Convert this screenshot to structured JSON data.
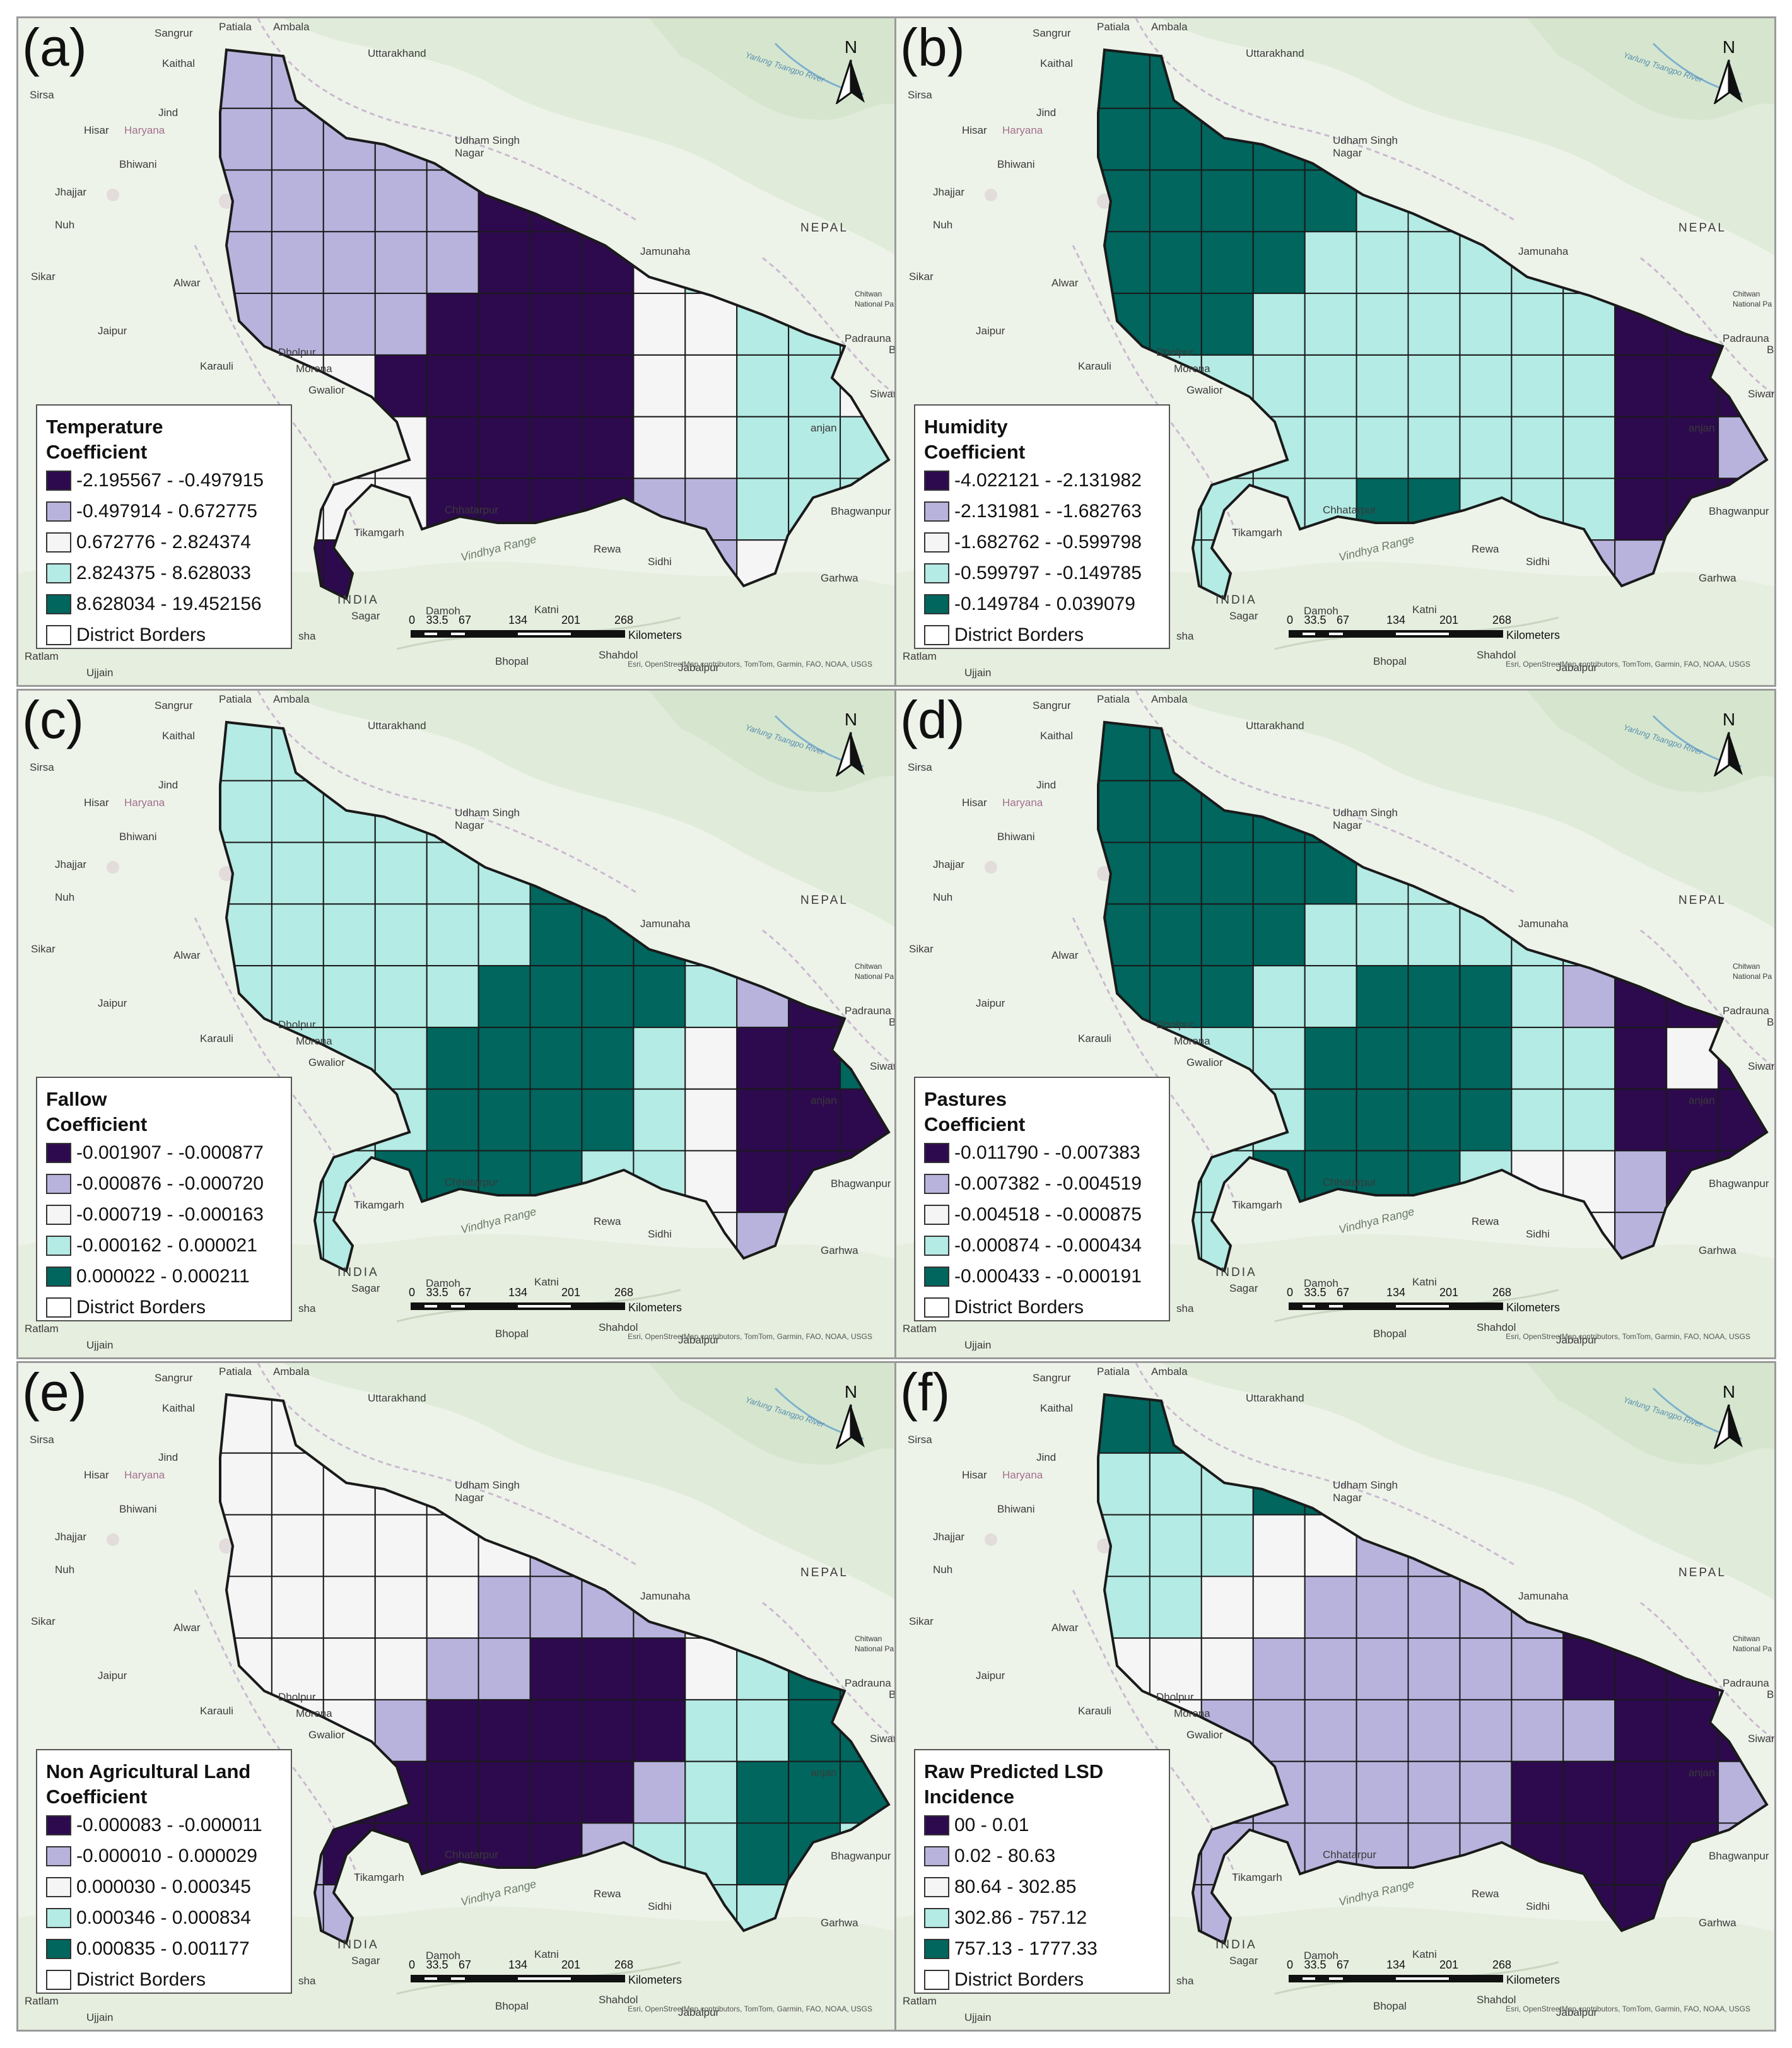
{
  "colors": {
    "c1": "#2d0a4e",
    "c2": "#b8b3dd",
    "c3": "#f5f5f5",
    "c4": "#b4ebe4",
    "c5": "#00665e",
    "border": "#1a1a1a",
    "basemap": "#eef3ea"
  },
  "places": {
    "sangrur": "Sangrur",
    "patiala": "Patiala",
    "ambala": "Ambala",
    "kaithal": "Kaithal",
    "sirsa": "Sirsa",
    "jind": "Jind",
    "hisar": "Hisar",
    "haryana": "Haryana",
    "bhiwani": "Bhiwani",
    "jhajjar": "Jhajjar",
    "nuh": "Nuh",
    "sikar": "Sikar",
    "alwar": "Alwar",
    "jaipur": "Jaipur",
    "karauli": "Karauli",
    "dholpur": "Dholpur",
    "morena": "Morena",
    "gwalior": "Gwalior",
    "uttarakhand": "Uttarakhand",
    "udham1": "Udham Singh",
    "udham2": "Nagar",
    "nepal": "NEPAL",
    "jamunaha": "Jamunaha",
    "chitwan1": "Chitwan",
    "chitwan2": "National Pa",
    "padrauna": "Padrauna",
    "bet": "Bet",
    "siwan": "Siwan",
    "anjan": "anjan",
    "bhagwanpur": "Bhagwanpur",
    "tikamgarh": "Tikamgarh",
    "chhatarpur": "Chhatarpur",
    "vindhya": "Vindhya Range",
    "rewa": "Rewa",
    "sidhi": "Sidhi",
    "garhwa": "Garhwa",
    "india": "INDIA",
    "sagar": "Sagar",
    "damoh": "Damoh",
    "katni": "Katni",
    "jabalpur": "Jabalpur",
    "bhopal": "Bhopal",
    "ujjain": "Ujjain",
    "ratlam": "Ratlam",
    "shahdol": "Shahdol",
    "river": "Yarlung Tsangpo River",
    "sha": "sha"
  },
  "scale": {
    "labels": [
      "0",
      "33.5",
      "67",
      "134",
      "201",
      "268"
    ],
    "unit": "Kilometers"
  },
  "attribution": "Esri, OpenStreetMap contributors, TomTom, Garmin, FAO, NOAA, USGS",
  "north": "N",
  "border_label": "District Borders",
  "panels": [
    {
      "label": "(a)",
      "title1": "Temperature",
      "title2": "Coefficient",
      "classes": [
        "-2.195567 - -0.497915",
        "-0.497914 - 0.672775",
        "0.672776 - 2.824374",
        "2.824375 - 8.628033",
        "8.628034 - 19.452156"
      ],
      "cell_classes": [
        [
          2,
          2,
          2,
          2,
          2,
          2,
          0,
          0,
          0,
          0,
          0,
          0,
          0
        ],
        [
          2,
          2,
          2,
          2,
          2,
          2,
          1,
          1,
          3,
          3,
          3,
          3,
          3
        ],
        [
          2,
          2,
          2,
          2,
          2,
          1,
          1,
          1,
          3,
          3,
          3,
          3,
          3
        ],
        [
          2,
          2,
          2,
          2,
          2,
          1,
          1,
          1,
          3,
          4,
          4,
          4,
          4
        ],
        [
          2,
          2,
          2,
          2,
          1,
          1,
          1,
          1,
          3,
          3,
          4,
          4,
          4
        ],
        [
          0,
          0,
          0,
          1,
          1,
          1,
          1,
          1,
          3,
          3,
          4,
          4,
          3
        ],
        [
          0,
          0,
          0,
          0,
          1,
          1,
          1,
          1,
          3,
          3,
          4,
          4,
          4
        ],
        [
          0,
          0,
          0,
          0,
          1,
          1,
          1,
          1,
          2,
          2,
          4,
          4,
          4
        ],
        [
          0,
          1,
          1,
          1,
          1,
          1,
          1,
          2,
          2,
          2,
          3,
          3,
          3
        ]
      ]
    },
    {
      "label": "(b)",
      "title1": "Humidity",
      "title2": "Coefficient",
      "classes": [
        "-4.022121 - -2.131982",
        "-2.131981 - -1.682763",
        "-1.682762 - -0.599798",
        "-0.599797 - -0.149785",
        "-0.149784 - 0.039079"
      ],
      "cell_classes": [
        [
          5,
          5,
          5,
          5,
          5,
          5,
          4,
          4,
          4,
          4,
          4,
          4,
          3
        ],
        [
          5,
          5,
          5,
          5,
          5,
          5,
          4,
          4,
          4,
          4,
          4,
          4,
          3
        ],
        [
          5,
          5,
          5,
          5,
          5,
          4,
          4,
          4,
          4,
          4,
          4,
          3,
          3
        ],
        [
          5,
          5,
          5,
          5,
          4,
          4,
          4,
          4,
          4,
          4,
          4,
          1,
          1
        ],
        [
          5,
          5,
          5,
          4,
          4,
          4,
          4,
          4,
          4,
          4,
          1,
          1,
          1
        ],
        [
          4,
          4,
          4,
          4,
          4,
          4,
          4,
          4,
          4,
          4,
          1,
          1,
          1
        ],
        [
          4,
          4,
          4,
          4,
          4,
          4,
          4,
          4,
          4,
          4,
          1,
          1,
          2
        ],
        [
          4,
          4,
          4,
          4,
          4,
          5,
          5,
          4,
          4,
          4,
          1,
          1,
          1
        ],
        [
          4,
          4,
          4,
          4,
          4,
          4,
          4,
          4,
          4,
          2,
          2,
          2,
          2
        ]
      ]
    },
    {
      "label": "(c)",
      "title1": "Fallow",
      "title2": "Coefficient",
      "classes": [
        "-0.001907 - -0.000877",
        "-0.000876 - -0.000720",
        "-0.000719 - -0.000163",
        "-0.000162 - 0.000021",
        "0.000022 - 0.000211"
      ],
      "cell_classes": [
        [
          4,
          4,
          4,
          4,
          4,
          4,
          4,
          4,
          4,
          4,
          4,
          4,
          3
        ],
        [
          4,
          4,
          4,
          4,
          4,
          4,
          4,
          5,
          5,
          5,
          4,
          4,
          3
        ],
        [
          4,
          4,
          4,
          4,
          4,
          4,
          5,
          5,
          5,
          4,
          3,
          1,
          1
        ],
        [
          4,
          4,
          4,
          4,
          4,
          4,
          5,
          5,
          5,
          4,
          1,
          1,
          1
        ],
        [
          4,
          4,
          4,
          4,
          4,
          5,
          5,
          5,
          5,
          4,
          2,
          1,
          1
        ],
        [
          4,
          4,
          4,
          4,
          5,
          5,
          5,
          5,
          4,
          3,
          1,
          1,
          5
        ],
        [
          4,
          4,
          4,
          4,
          5,
          5,
          5,
          5,
          4,
          3,
          1,
          1,
          1
        ],
        [
          4,
          4,
          4,
          5,
          5,
          5,
          5,
          4,
          4,
          3,
          1,
          1,
          1
        ],
        [
          4,
          4,
          4,
          4,
          5,
          5,
          4,
          4,
          3,
          3,
          2,
          2,
          2
        ]
      ]
    },
    {
      "label": "(d)",
      "title1": "Pastures",
      "title2": "Coefficient",
      "classes": [
        "-0.011790 - -0.007383",
        "-0.007382 - -0.004519",
        "-0.004518 - -0.000875",
        "-0.000874 - -0.000434",
        "-0.000433 - -0.000191"
      ],
      "cell_classes": [
        [
          5,
          5,
          5,
          5,
          5,
          5,
          4,
          4,
          4,
          4,
          4,
          3,
          3
        ],
        [
          5,
          5,
          5,
          5,
          5,
          5,
          4,
          4,
          4,
          4,
          4,
          3,
          3
        ],
        [
          5,
          5,
          5,
          5,
          5,
          4,
          4,
          4,
          4,
          4,
          3,
          1,
          1
        ],
        [
          5,
          5,
          5,
          5,
          4,
          4,
          4,
          4,
          4,
          4,
          1,
          1,
          1
        ],
        [
          5,
          5,
          5,
          4,
          4,
          5,
          5,
          5,
          4,
          2,
          1,
          1,
          1
        ],
        [
          4,
          4,
          4,
          4,
          5,
          5,
          5,
          5,
          4,
          4,
          1,
          3,
          1
        ],
        [
          4,
          4,
          4,
          4,
          5,
          5,
          5,
          5,
          4,
          4,
          1,
          1,
          1
        ],
        [
          4,
          4,
          4,
          5,
          5,
          5,
          5,
          4,
          3,
          3,
          2,
          1,
          1
        ],
        [
          4,
          4,
          4,
          4,
          5,
          4,
          4,
          3,
          3,
          3,
          2,
          2,
          2
        ]
      ]
    },
    {
      "label": "(e)",
      "title1": "Non Agricultural Land",
      "title2": "Coefficient",
      "classes": [
        "-0.000083 - -0.000011",
        "-0.000010 - 0.000029",
        "0.000030 - 0.000345",
        "0.000346 - 0.000834",
        "0.000835 - 0.001177"
      ],
      "cell_classes": [
        [
          3,
          3,
          3,
          3,
          3,
          3,
          3,
          3,
          3,
          3,
          3,
          3,
          3
        ],
        [
          3,
          3,
          3,
          3,
          3,
          3,
          3,
          2,
          2,
          2,
          3,
          3,
          3
        ],
        [
          3,
          3,
          3,
          3,
          3,
          3,
          2,
          2,
          2,
          2,
          3,
          4,
          4
        ],
        [
          3,
          3,
          3,
          3,
          3,
          2,
          2,
          2,
          2,
          3,
          4,
          5,
          5
        ],
        [
          3,
          3,
          3,
          3,
          2,
          2,
          1,
          1,
          1,
          3,
          4,
          5,
          5
        ],
        [
          3,
          3,
          3,
          2,
          1,
          1,
          1,
          1,
          1,
          4,
          4,
          5,
          5
        ],
        [
          2,
          2,
          1,
          1,
          1,
          1,
          1,
          1,
          2,
          4,
          5,
          5,
          5
        ],
        [
          2,
          2,
          1,
          1,
          1,
          1,
          1,
          2,
          4,
          4,
          5,
          5,
          4
        ],
        [
          2,
          2,
          2,
          1,
          1,
          1,
          2,
          2,
          4,
          4,
          4,
          4,
          4
        ]
      ]
    },
    {
      "label": "(f)",
      "title1": "Raw Predicted LSD",
      "title2": "Incidence",
      "classes": [
        "00 - 0.01",
        "0.02 - 80.63",
        "80.64 - 302.85",
        "302.86 - 757.12",
        "757.13 - 1777.33"
      ],
      "cell_classes": [
        [
          5,
          5,
          4,
          5,
          5,
          3,
          4,
          3,
          3,
          3,
          3,
          3,
          3
        ],
        [
          4,
          4,
          4,
          5,
          5,
          3,
          2,
          2,
          2,
          2,
          2,
          2,
          2
        ],
        [
          4,
          4,
          4,
          3,
          3,
          2,
          2,
          2,
          2,
          2,
          1,
          1,
          2
        ],
        [
          4,
          4,
          3,
          3,
          2,
          2,
          2,
          2,
          2,
          1,
          1,
          1,
          1
        ],
        [
          3,
          3,
          3,
          2,
          2,
          2,
          2,
          2,
          2,
          1,
          1,
          1,
          2
        ],
        [
          3,
          3,
          2,
          2,
          2,
          2,
          2,
          2,
          2,
          2,
          1,
          1,
          1
        ],
        [
          2,
          2,
          2,
          2,
          2,
          2,
          2,
          2,
          1,
          1,
          1,
          1,
          2
        ],
        [
          2,
          2,
          2,
          2,
          2,
          2,
          2,
          2,
          1,
          1,
          1,
          1,
          2
        ],
        [
          2,
          2,
          2,
          2,
          2,
          2,
          2,
          1,
          1,
          1,
          1,
          1,
          2
        ]
      ]
    }
  ]
}
